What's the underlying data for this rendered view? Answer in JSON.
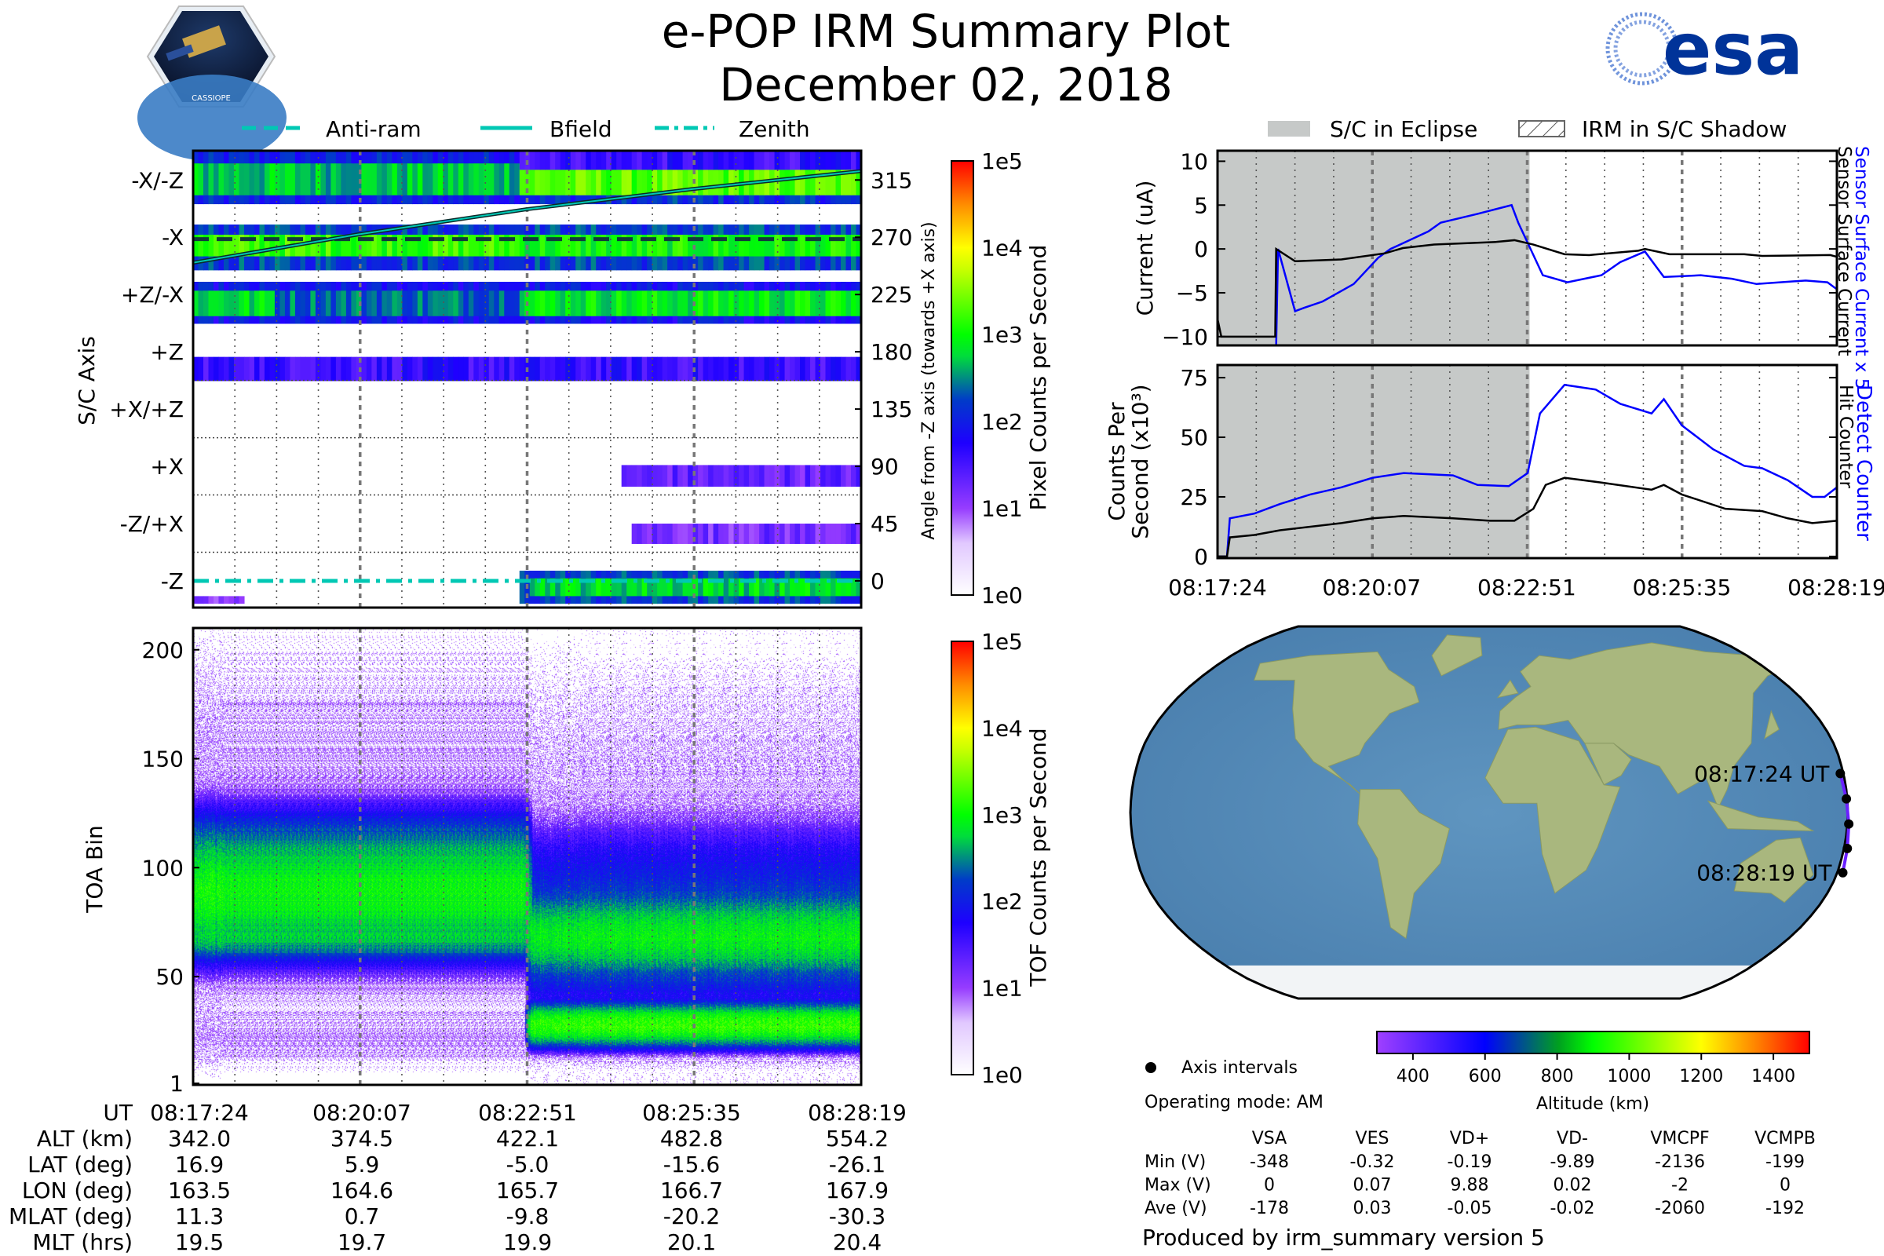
{
  "header": {
    "title": "e-POP IRM Summary Plot",
    "date": "December 02, 2018",
    "logo_left_text": "CASSIOPE",
    "logo_right_text": "esa"
  },
  "legend_left": [
    {
      "label": "Anti-ram",
      "style": "dashed"
    },
    {
      "label": "Bfield",
      "style": "solid"
    },
    {
      "label": "Zenith",
      "style": "dashdot"
    }
  ],
  "legend_right": [
    {
      "label": "S/C in Eclipse",
      "color": "#c6c9c8"
    },
    {
      "label": "IRM in S/C Shadow",
      "style": "hatched"
    }
  ],
  "colors": {
    "blue_series": "#0000ff",
    "black_series": "#000000",
    "eclipse": "#c6c9c8",
    "line_accent": "#00d2be",
    "esa_blue": "#003399"
  },
  "x_time": {
    "start": "08:17:24",
    "span_s": 655,
    "tick_labels": [
      "08:17:24",
      "08:20:07",
      "08:22:51",
      "08:25:35",
      "08:28:19"
    ],
    "tick_s": [
      0,
      163,
      327,
      491,
      655
    ]
  },
  "chart_data": [
    {
      "id": "angle-spectrogram",
      "type": "heatmap",
      "ylabel": "S/C Axis",
      "ylabel_right": "Angle from -Z axis (towards +X axis)",
      "ylim": [
        -21,
        338
      ],
      "y_axis_labels": [
        {
          "label": "-X/-Z",
          "angle": 315
        },
        {
          "label": "-X",
          "angle": 270
        },
        {
          "label": "+Z/-X",
          "angle": 225
        },
        {
          "label": "+Z",
          "angle": 180
        },
        {
          "label": "+X/+Z",
          "angle": 135
        },
        {
          "label": "+X",
          "angle": 90
        },
        {
          "label": "-Z/+X",
          "angle": 45
        },
        {
          "label": "-Z",
          "angle": 0
        }
      ],
      "bands_log10_counts": [
        {
          "lo": 296,
          "hi": 338,
          "segments": [
            [
              0,
              320,
              2.0
            ],
            [
              320,
              655,
              2.1
            ]
          ]
        },
        {
          "lo": 303,
          "hi": 328,
          "segments": [
            [
              0,
              320,
              2.7
            ],
            [
              320,
              655,
              3.3
            ]
          ]
        },
        {
          "lo": 323,
          "hi": 338,
          "segments": [
            [
              320,
              655,
              1.6
            ]
          ]
        },
        {
          "lo": 244,
          "hi": 280,
          "segments": [
            [
              0,
              655,
              2.2
            ]
          ]
        },
        {
          "lo": 255,
          "hi": 272,
          "segments": [
            [
              0,
              320,
              3.2
            ],
            [
              320,
              655,
              3.0
            ]
          ]
        },
        {
          "lo": 202,
          "hi": 235,
          "segments": [
            [
              0,
              655,
              1.9
            ]
          ]
        },
        {
          "lo": 208,
          "hi": 228,
          "segments": [
            [
              0,
              80,
              2.8
            ],
            [
              80,
              320,
              2.4
            ],
            [
              320,
              655,
              2.9
            ]
          ]
        },
        {
          "lo": 157,
          "hi": 176,
          "segments": [
            [
              0,
              655,
              1.6
            ]
          ]
        },
        {
          "lo": 74,
          "hi": 91,
          "segments": [
            [
              420,
              655,
              1.3
            ]
          ]
        },
        {
          "lo": 29,
          "hi": 45,
          "segments": [
            [
              430,
              655,
              1.2
            ]
          ]
        },
        {
          "lo": -18,
          "hi": -12,
          "segments": [
            [
              0,
              50,
              1.0
            ]
          ]
        },
        {
          "lo": -18,
          "hi": 8,
          "segments": [
            [
              320,
              655,
              2.2
            ]
          ]
        },
        {
          "lo": -12,
          "hi": 2,
          "segments": [
            [
              330,
              655,
              2.8
            ]
          ]
        }
      ],
      "lines": {
        "anti_ram_angle": 268.5,
        "zenith_angle": 0,
        "bfield": [
          [
            0,
            250
          ],
          [
            160,
            272
          ],
          [
            327,
            292
          ],
          [
            491,
            308
          ],
          [
            655,
            322
          ]
        ]
      },
      "colorbar": {
        "label": "Pixel Counts per Second",
        "ticks": [
          "1e0",
          "1e1",
          "1e2",
          "1e3",
          "1e4",
          "1e5"
        ]
      }
    },
    {
      "id": "toa-spectrogram",
      "type": "heatmap",
      "ylabel": "TOA Bin",
      "ylim": [
        0.3,
        210
      ],
      "yticks": [
        1,
        50,
        100,
        150,
        200
      ],
      "ytick_labels": [
        "1",
        "50",
        "100",
        "150",
        "200"
      ],
      "components_before_0822": [
        {
          "center": 88,
          "sigma": 13,
          "peak": 1000
        },
        {
          "center": 67,
          "sigma": 4,
          "peak": 250
        },
        {
          "center": 110,
          "sigma": 10,
          "peak": 150
        },
        {
          "center": 110,
          "sigma": 45,
          "peak": 6
        },
        {
          "center": 22,
          "sigma": 6,
          "peak": 5
        }
      ],
      "components_after_0822": [
        {
          "center": 28,
          "sigma": 4.5,
          "peak": 1500
        },
        {
          "center": 46,
          "sigma": 4,
          "peak": 60
        },
        {
          "center": 68,
          "sigma": 9,
          "peak": 800
        },
        {
          "center": 90,
          "sigma": 15,
          "peak": 100
        },
        {
          "center": 100,
          "sigma": 50,
          "peak": 4
        }
      ],
      "transition_s": 325,
      "colorbar": {
        "label": "TOF Counts per Second",
        "ticks": [
          "1e0",
          "1e1",
          "1e2",
          "1e3",
          "1e4",
          "1e5"
        ]
      }
    },
    {
      "id": "current-plot",
      "type": "line",
      "ylabel": "Current (uA)",
      "ylim": [
        -11,
        11.2
      ],
      "yticks": [
        -10,
        -5,
        0,
        5,
        10
      ],
      "ytick_labels": [
        "−10",
        "−5",
        "0",
        "5",
        "10"
      ],
      "eclipse_s": [
        0,
        330
      ],
      "series": [
        {
          "name": "Sensor Surface Current x 5",
          "color": "#0000ff",
          "points": [
            [
              0,
              -11
            ],
            [
              61,
              -11
            ],
            [
              62,
              -11
            ],
            [
              64,
              0
            ],
            [
              82,
              -7.1
            ],
            [
              92,
              -6.7
            ],
            [
              111,
              -6
            ],
            [
              144,
              -4
            ],
            [
              170,
              -1
            ],
            [
              183,
              0
            ],
            [
              223,
              2
            ],
            [
              236,
              3
            ],
            [
              275,
              4
            ],
            [
              311,
              5
            ],
            [
              318,
              3
            ],
            [
              331,
              0
            ],
            [
              344,
              -3
            ],
            [
              370,
              -3.8
            ],
            [
              406,
              -3
            ],
            [
              426,
              -1.5
            ],
            [
              452,
              -0.3
            ],
            [
              472,
              -3.2
            ],
            [
              511,
              -3
            ],
            [
              544,
              -3.4
            ],
            [
              570,
              -4
            ],
            [
              622,
              -3.6
            ],
            [
              645,
              -3.8
            ],
            [
              655,
              -4.6
            ]
          ]
        },
        {
          "name": "Sensor Surface Current",
          "color": "#000000",
          "points": [
            [
              0,
              -8
            ],
            [
              4,
              -10
            ],
            [
              61,
              -10
            ],
            [
              62,
              0
            ],
            [
              82,
              -1.4
            ],
            [
              131,
              -1.2
            ],
            [
              177,
              -0.5
            ],
            [
              196,
              0.1
            ],
            [
              229,
              0.5
            ],
            [
              295,
              0.8
            ],
            [
              314,
              1.0
            ],
            [
              334,
              0.5
            ],
            [
              367,
              -0.6
            ],
            [
              393,
              -0.7
            ],
            [
              445,
              -0.2
            ],
            [
              452,
              0
            ],
            [
              478,
              -0.6
            ],
            [
              557,
              -0.6
            ],
            [
              576,
              -0.8
            ],
            [
              648,
              -0.7
            ],
            [
              655,
              -0.9
            ]
          ]
        }
      ]
    },
    {
      "id": "counts-plot",
      "type": "line",
      "ylabel_line1": "Counts Per",
      "ylabel_line2": "Second (x10³)",
      "ylim": [
        -0.7,
        80.3
      ],
      "yticks": [
        0,
        25,
        50,
        75
      ],
      "ytick_labels": [
        "0",
        "25",
        "50",
        "75"
      ],
      "eclipse_s": [
        0,
        330
      ],
      "series": [
        {
          "name": "Detect Counter",
          "color": "#0000ff",
          "points": [
            [
              0,
              0
            ],
            [
              10,
              0
            ],
            [
              13,
              16
            ],
            [
              39,
              18
            ],
            [
              66,
              22
            ],
            [
              98,
              26
            ],
            [
              131,
              29
            ],
            [
              164,
              33
            ],
            [
              197,
              35
            ],
            [
              249,
              34
            ],
            [
              275,
              30
            ],
            [
              308,
              29.5
            ],
            [
              328,
              35
            ],
            [
              341,
              60
            ],
            [
              367,
              72
            ],
            [
              400,
              70
            ],
            [
              426,
              64
            ],
            [
              459,
              60
            ],
            [
              472,
              66
            ],
            [
              491,
              55
            ],
            [
              524,
              45
            ],
            [
              557,
              38
            ],
            [
              576,
              37
            ],
            [
              603,
              32
            ],
            [
              629,
              25
            ],
            [
              642,
              25
            ],
            [
              655,
              29
            ]
          ]
        },
        {
          "name": "Hit Counter",
          "color": "#000000",
          "points": [
            [
              0,
              0
            ],
            [
              10,
              0
            ],
            [
              13,
              8
            ],
            [
              39,
              9
            ],
            [
              66,
              11
            ],
            [
              131,
              14
            ],
            [
              164,
              16
            ],
            [
              197,
              17
            ],
            [
              249,
              16
            ],
            [
              288,
              15
            ],
            [
              314,
              15
            ],
            [
              334,
              20
            ],
            [
              347,
              30
            ],
            [
              367,
              33
            ],
            [
              406,
              31
            ],
            [
              459,
              28
            ],
            [
              472,
              30
            ],
            [
              491,
              26
            ],
            [
              537,
              20
            ],
            [
              576,
              19
            ],
            [
              603,
              16
            ],
            [
              629,
              14
            ],
            [
              655,
              15
            ]
          ]
        }
      ]
    }
  ],
  "ephemeris": {
    "row_labels": [
      "UT",
      "ALT (km)",
      "LAT (deg)",
      "LON (deg)",
      "MLAT (deg)",
      "MLT (hrs)"
    ],
    "columns": [
      [
        "08:17:24",
        "342.0",
        "16.9",
        "163.5",
        "11.3",
        "19.5"
      ],
      [
        "08:20:07",
        "374.5",
        "5.9",
        "164.6",
        "0.7",
        "19.7"
      ],
      [
        "08:22:51",
        "422.1",
        "-5.0",
        "165.7",
        "-9.8",
        "19.9"
      ],
      [
        "08:25:35",
        "482.8",
        "-15.6",
        "166.7",
        "-20.2",
        "20.1"
      ],
      [
        "08:28:19",
        "554.2",
        "-26.1",
        "167.9",
        "-30.3",
        "20.4"
      ]
    ]
  },
  "map": {
    "track_labels": [
      "08:17:24 UT",
      "08:28:19 UT"
    ],
    "track": [
      [
        16.9,
        163.5,
        342.0
      ],
      [
        5.9,
        164.6,
        374.5
      ],
      [
        -5.0,
        165.7,
        422.1
      ],
      [
        -15.6,
        166.7,
        482.8
      ],
      [
        -26.1,
        167.9,
        554.2
      ]
    ],
    "axis_intervals_label": "Axis intervals",
    "altitude_colorbar": {
      "label": "Altitude (km)",
      "range": [
        300,
        1500
      ],
      "ticks": [
        400,
        600,
        800,
        1000,
        1200,
        1400
      ],
      "tick_labels": [
        "400",
        "600",
        "800",
        "1000",
        "1200",
        "1400"
      ]
    }
  },
  "operating_mode": "Operating mode: AM",
  "voltages": {
    "headers": [
      "VSA",
      "VES",
      "VD+",
      "VD-",
      "VMCPF",
      "VCMPB"
    ],
    "rows": [
      {
        "label": "Min (V)",
        "values": [
          "-348",
          "-0.32",
          "-0.19",
          "-9.89",
          "-2136",
          "-199"
        ]
      },
      {
        "label": "Max (V)",
        "values": [
          "0",
          "0.07",
          "9.88",
          "0.02",
          "-2",
          "0"
        ]
      },
      {
        "label": "Ave (V)",
        "values": [
          "-178",
          "0.03",
          "-0.05",
          "-0.02",
          "-2060",
          "-192"
        ]
      }
    ]
  },
  "footer": "Produced by irm_summary version 5"
}
